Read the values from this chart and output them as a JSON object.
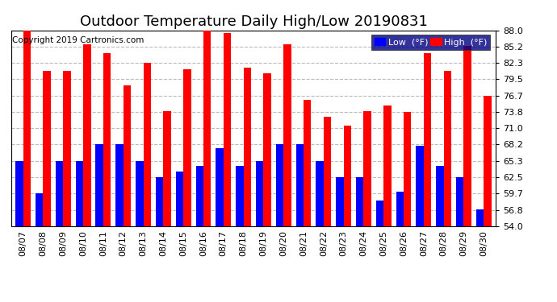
{
  "title": "Outdoor Temperature Daily High/Low 20190831",
  "copyright": "Copyright 2019 Cartronics.com",
  "background_color": "#ffffff",
  "plot_bg_color": "#ffffff",
  "bar_color_low": "#0000ff",
  "bar_color_high": "#ff0000",
  "legend_low_label": "Low  (°F)",
  "legend_high_label": "High  (°F)",
  "ylim": [
    54.0,
    88.0
  ],
  "yticks": [
    54.0,
    56.8,
    59.7,
    62.5,
    65.3,
    68.2,
    71.0,
    73.8,
    76.7,
    79.5,
    82.3,
    85.2,
    88.0
  ],
  "dates": [
    "08/07",
    "08/08",
    "08/09",
    "08/10",
    "08/11",
    "08/12",
    "08/13",
    "08/14",
    "08/15",
    "08/16",
    "08/17",
    "08/18",
    "08/19",
    "08/20",
    "08/21",
    "08/22",
    "08/23",
    "08/24",
    "08/25",
    "08/26",
    "08/27",
    "08/28",
    "08/29",
    "08/30"
  ],
  "highs": [
    88.0,
    81.0,
    81.0,
    85.5,
    84.0,
    78.5,
    82.3,
    74.0,
    81.2,
    88.0,
    87.5,
    81.5,
    80.5,
    85.5,
    76.0,
    73.0,
    71.5,
    74.0,
    75.0,
    73.8,
    84.0,
    81.0,
    85.3,
    76.7
  ],
  "lows": [
    65.3,
    59.7,
    65.3,
    65.3,
    68.2,
    68.2,
    65.3,
    62.5,
    63.5,
    64.5,
    67.5,
    64.5,
    65.3,
    68.2,
    68.2,
    65.3,
    62.5,
    62.5,
    58.5,
    60.0,
    68.0,
    64.5,
    62.5,
    57.0
  ],
  "grid_color": "#bbbbbb",
  "title_fontsize": 13,
  "copyright_fontsize": 7.5,
  "tick_fontsize": 8,
  "bar_width": 0.38
}
